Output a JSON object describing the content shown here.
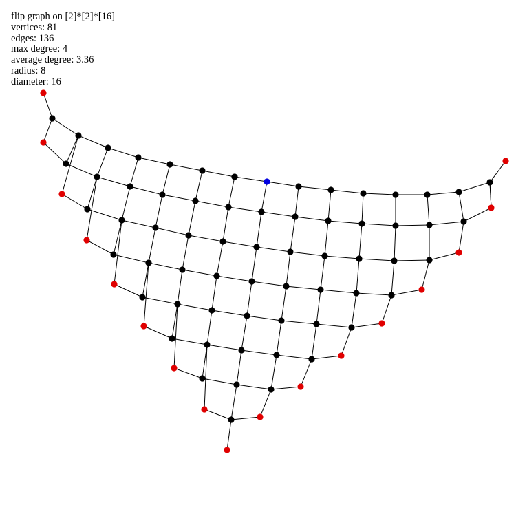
{
  "stats": {
    "title": "flip graph on [2]*[2]*[16]",
    "vertices": "vertices: 81",
    "edges": "edges: 136",
    "max_degree": "max degree: 4",
    "average_degree": "average degree: 3.36",
    "radius": "radius: 8",
    "diameter": "diameter: 16"
  },
  "colors": {
    "edge": "#000000",
    "vertex": "#000000",
    "boundary_vertex": "#e00000",
    "highlight_vertex": "#0000e0"
  }
}
